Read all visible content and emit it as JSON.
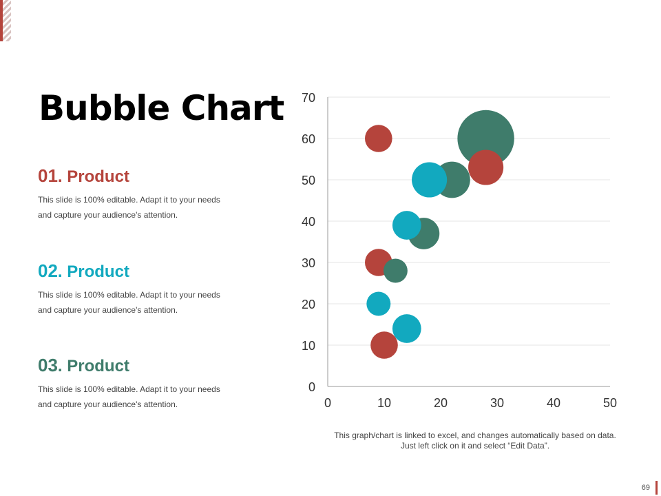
{
  "slide": {
    "title": "Bubble Chart",
    "page_number": "69",
    "note_line1": "This graph/chart is linked to excel, and changes automatically based on data.",
    "note_line2": "Just left click on it and select “Edit Data”."
  },
  "products": [
    {
      "number": "01",
      "sep": ".",
      "label": "Product",
      "color": "#b5443c",
      "line1": "This slide is 100% editable. Adapt it to your needs",
      "line2": "and capture your audience's attention."
    },
    {
      "number": "02",
      "sep": ".",
      "label": "Product",
      "color": "#12a9bf",
      "line1": "This slide is 100% editable. Adapt it to your needs",
      "line2": "and capture your audience's attention."
    },
    {
      "number": "03",
      "sep": ".",
      "label": "Product",
      "color": "#3f7c6b",
      "line1": "This slide is 100% editable. Adapt it to your needs",
      "line2": "and capture your audience's attention."
    }
  ],
  "chart_data": {
    "type": "scatter",
    "bubble": true,
    "title": "",
    "xlabel": "",
    "ylabel": "",
    "xlim": [
      0,
      50
    ],
    "ylim": [
      0,
      70
    ],
    "x_ticks": [
      0,
      10,
      20,
      30,
      40,
      50
    ],
    "y_ticks": [
      0,
      10,
      20,
      30,
      40,
      50,
      60,
      70
    ],
    "grid": "horizontal",
    "legend": "none",
    "series": [
      {
        "color": "#b5443c",
        "points": [
          {
            "x": 10,
            "y": 10,
            "size": 9
          },
          {
            "x": 9,
            "y": 30,
            "size": 9
          },
          {
            "x": 9,
            "y": 60,
            "size": 9
          },
          {
            "x": 28,
            "y": 53,
            "size": 15
          }
        ]
      },
      {
        "color": "#12a9bf",
        "points": [
          {
            "x": 14,
            "y": 14,
            "size": 10
          },
          {
            "x": 9,
            "y": 20,
            "size": 7
          },
          {
            "x": 14,
            "y": 39,
            "size": 10
          },
          {
            "x": 18,
            "y": 50,
            "size": 15
          }
        ]
      },
      {
        "color": "#3f7c6b",
        "points": [
          {
            "x": 12,
            "y": 28,
            "size": 7
          },
          {
            "x": 17,
            "y": 37,
            "size": 12
          },
          {
            "x": 22,
            "y": 50,
            "size": 16
          },
          {
            "x": 28,
            "y": 60,
            "size": 39
          }
        ]
      }
    ]
  }
}
